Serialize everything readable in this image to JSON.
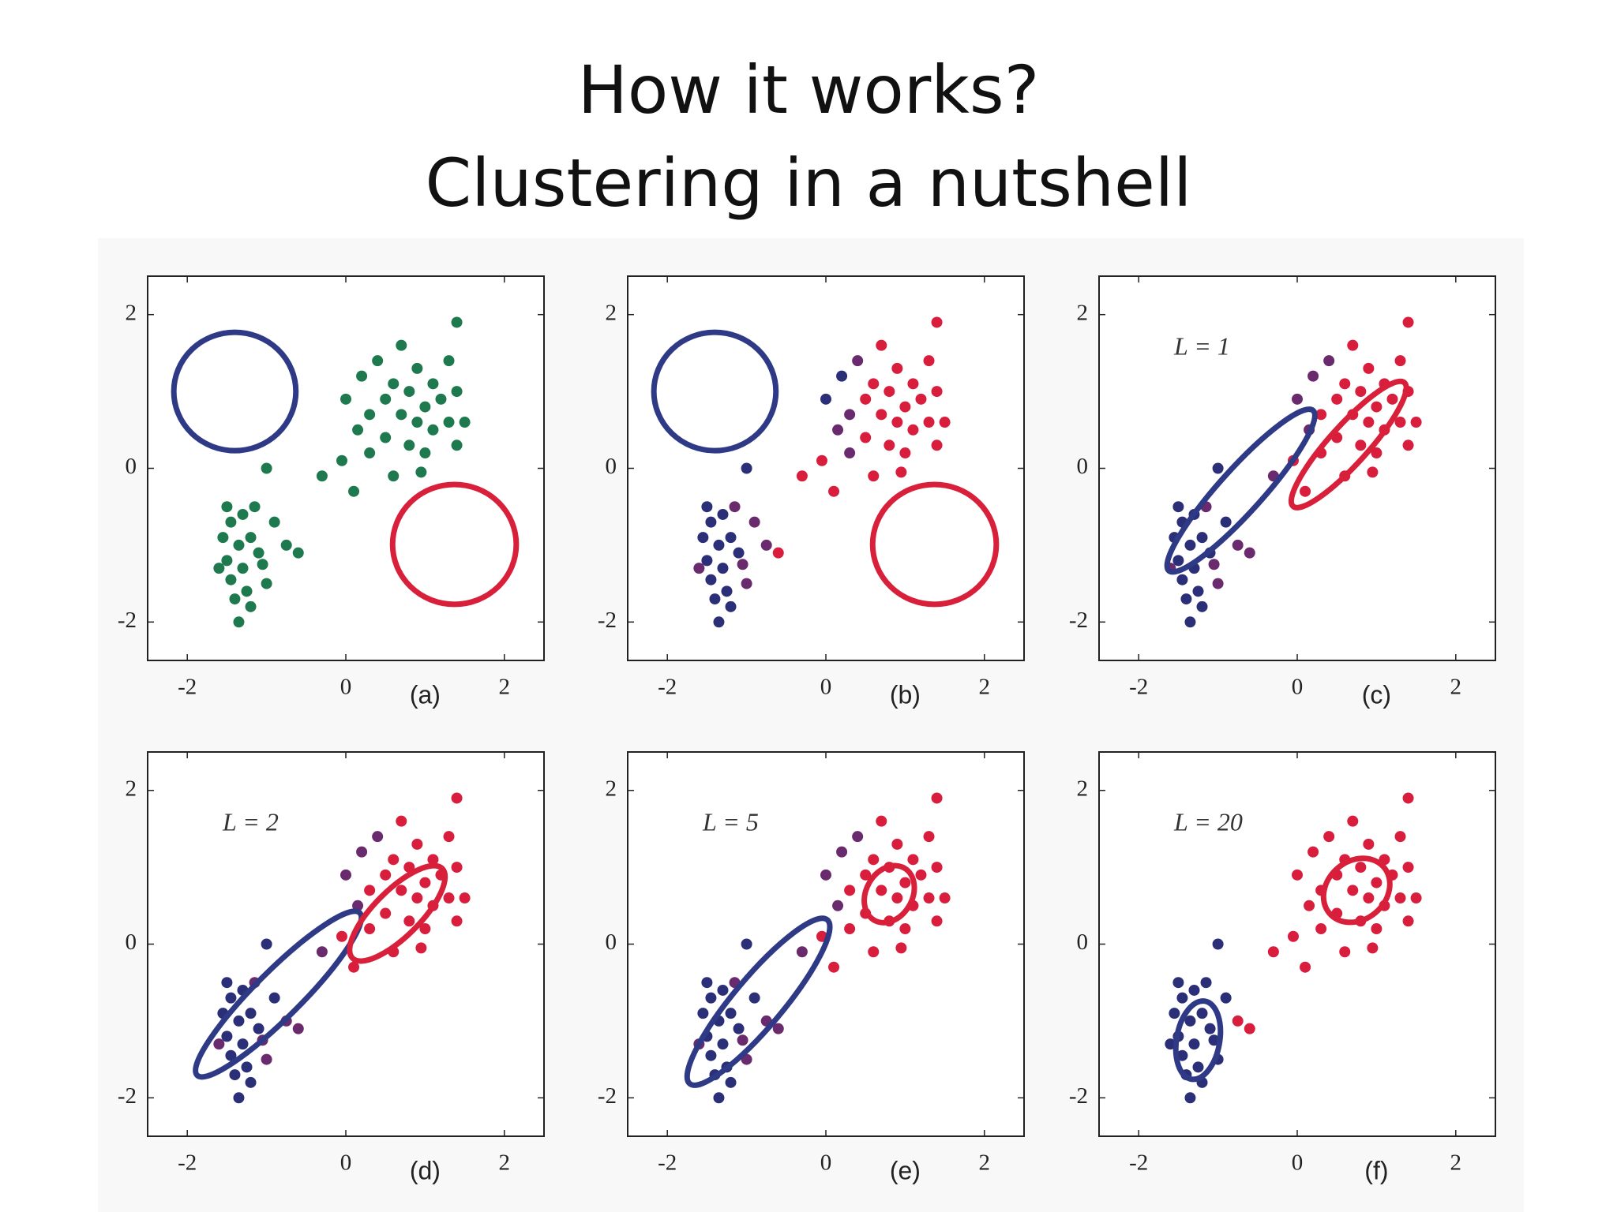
{
  "title": {
    "line1": "How it works?",
    "line2": "Clustering in a nutshell"
  },
  "chart_data": [
    {
      "type": "scatter",
      "label": "(a)",
      "xlim": [
        -2.5,
        2.5
      ],
      "ylim": [
        -2.5,
        2.5
      ],
      "xticks": [
        -2,
        0,
        2
      ],
      "yticks": [
        -2,
        0,
        2
      ],
      "series": [
        {
          "color": "#1e7a4e",
          "x": [
            -1.5,
            -1.45,
            -1.3,
            -1.55,
            -1.35,
            -1.2,
            -1.5,
            -1.3,
            -1.1,
            -1.45,
            -1.25,
            -1.4,
            -1.2,
            -1.35,
            -1.0,
            -1.05,
            -1.6,
            -1.15,
            -0.9,
            -0.75,
            -0.6,
            -0.3,
            -0.05,
            0.1,
            -1.0,
            0.0,
            0.2,
            0.3,
            0.4,
            0.5,
            0.5,
            0.6,
            0.7,
            0.7,
            0.8,
            0.8,
            0.9,
            0.9,
            1.0,
            1.0,
            1.1,
            1.1,
            1.2,
            1.3,
            1.3,
            1.4,
            1.4,
            0.3,
            0.6,
            1.5,
            1.4,
            0.15,
            0.95
          ],
          "values": [
            -0.5,
            -0.7,
            -0.6,
            -0.9,
            -1.0,
            -0.9,
            -1.2,
            -1.3,
            -1.1,
            -1.45,
            -1.6,
            -1.7,
            -1.8,
            -2.0,
            -1.5,
            -1.25,
            -1.3,
            -0.5,
            -0.7,
            -1.0,
            -1.1,
            -0.1,
            0.1,
            -0.3,
            0.0,
            0.9,
            1.2,
            0.7,
            1.4,
            0.9,
            0.4,
            1.1,
            0.7,
            1.6,
            0.3,
            1.0,
            0.6,
            1.3,
            0.8,
            0.2,
            1.1,
            0.5,
            0.9,
            0.6,
            1.4,
            0.3,
            1.0,
            0.2,
            -0.1,
            0.6,
            1.9,
            0.5,
            -0.05
          ]
        }
      ],
      "ellipses": [
        {
          "cx": -1.4,
          "cy": 1.0,
          "rx": 0.77,
          "ry": 0.77,
          "angle": 0,
          "color": "#2f3a86"
        },
        {
          "cx": 1.37,
          "cy": -0.99,
          "rx": 0.78,
          "ry": 0.78,
          "angle": 0,
          "color": "#d8203a"
        }
      ]
    },
    {
      "type": "scatter",
      "label": "(b)",
      "xlim": [
        -2.5,
        2.5
      ],
      "ylim": [
        -2.5,
        2.5
      ],
      "xticks": [
        -2,
        0,
        2
      ],
      "yticks": [
        -2,
        0,
        2
      ],
      "series": [
        {
          "color": "#2a2f78",
          "x": [
            -1.5,
            -1.45,
            -1.3,
            -1.55,
            -1.35,
            -1.2,
            -1.5,
            -1.3,
            -1.1,
            -1.45,
            -1.25,
            -1.4,
            -1.2,
            -1.35,
            -1.0,
            0.0,
            0.2
          ],
          "values": [
            -0.5,
            -0.7,
            -0.6,
            -0.9,
            -1.0,
            -0.9,
            -1.2,
            -1.3,
            -1.1,
            -1.45,
            -1.6,
            -1.7,
            -1.8,
            -2.0,
            0.0,
            0.9,
            1.2
          ]
        },
        {
          "color": "#6a2a6e",
          "x": [
            -1.0,
            -1.05,
            -1.6,
            -1.15,
            -0.9,
            0.15,
            0.3,
            0.4,
            0.3,
            -0.75
          ],
          "values": [
            -1.5,
            -1.25,
            -1.3,
            -0.5,
            -0.7,
            0.5,
            0.7,
            1.4,
            0.2,
            -1.0
          ]
        },
        {
          "color": "#d81e3c",
          "x": [
            -0.6,
            -0.3,
            -0.05,
            0.1,
            0.5,
            0.5,
            0.6,
            0.7,
            0.7,
            0.8,
            0.8,
            0.9,
            0.9,
            1.0,
            1.0,
            1.1,
            1.1,
            1.2,
            1.3,
            1.3,
            1.4,
            1.4,
            0.6,
            1.5,
            1.4,
            0.95
          ],
          "values": [
            -1.1,
            -0.1,
            0.1,
            -0.3,
            0.9,
            0.4,
            1.1,
            0.7,
            1.6,
            0.3,
            1.0,
            0.6,
            1.3,
            0.8,
            0.2,
            1.1,
            0.5,
            0.9,
            0.6,
            1.4,
            0.3,
            1.0,
            -0.1,
            0.6,
            1.9,
            -0.05
          ]
        }
      ],
      "ellipses": [
        {
          "cx": -1.4,
          "cy": 1.0,
          "rx": 0.77,
          "ry": 0.77,
          "angle": 0,
          "color": "#2f3a86"
        },
        {
          "cx": 1.37,
          "cy": -0.99,
          "rx": 0.78,
          "ry": 0.78,
          "angle": 0,
          "color": "#d8203a"
        }
      ]
    },
    {
      "type": "scatter",
      "label": "(c)",
      "annotation": "L = 1",
      "xlim": [
        -2.5,
        2.5
      ],
      "ylim": [
        -2.5,
        2.5
      ],
      "xticks": [
        -2,
        0,
        2
      ],
      "yticks": [
        -2,
        0,
        2
      ],
      "series": [
        {
          "color": "#2a2f78",
          "x": [
            -1.5,
            -1.45,
            -1.3,
            -1.55,
            -1.35,
            -1.2,
            -1.5,
            -1.3,
            -1.1,
            -1.45,
            -1.25,
            -1.4,
            -1.2,
            -1.35,
            -1.0,
            -0.9
          ],
          "values": [
            -0.5,
            -0.7,
            -0.6,
            -0.9,
            -1.0,
            -0.9,
            -1.2,
            -1.3,
            -1.1,
            -1.45,
            -1.6,
            -1.7,
            -1.8,
            -2.0,
            0.0,
            -0.7
          ]
        },
        {
          "color": "#6a2a6e",
          "x": [
            -1.0,
            -1.05,
            -1.6,
            -1.15,
            -0.75,
            -0.6,
            -0.3,
            0.0,
            0.2,
            0.15,
            0.4
          ],
          "values": [
            -1.5,
            -1.25,
            -1.3,
            -0.5,
            -1.0,
            -1.1,
            -0.1,
            0.9,
            1.2,
            0.5,
            1.4
          ]
        },
        {
          "color": "#d81e3c",
          "x": [
            0.3,
            0.5,
            0.5,
            0.6,
            0.7,
            0.7,
            0.8,
            0.8,
            0.9,
            0.9,
            1.0,
            1.0,
            1.1,
            1.1,
            1.2,
            1.3,
            1.3,
            1.4,
            1.4,
            0.3,
            0.6,
            1.5,
            1.4,
            0.95,
            -0.05,
            0.1
          ],
          "values": [
            0.7,
            0.9,
            0.4,
            1.1,
            0.7,
            1.6,
            0.3,
            1.0,
            0.6,
            1.3,
            0.8,
            0.2,
            1.1,
            0.5,
            0.9,
            0.6,
            1.4,
            0.3,
            1.0,
            0.2,
            -0.1,
            0.6,
            1.9,
            -0.05,
            0.1,
            -0.3
          ]
        }
      ],
      "ellipses": [
        {
          "cx": -0.71,
          "cy": -0.29,
          "rx": 1.36,
          "ry": 0.28,
          "angle": 48,
          "color": "#2f3a86"
        },
        {
          "cx": 0.65,
          "cy": 0.31,
          "rx": 1.05,
          "ry": 0.25,
          "angle": 48,
          "color": "#d8203a"
        }
      ]
    },
    {
      "type": "scatter",
      "label": "(d)",
      "annotation": "L = 2",
      "xlim": [
        -2.5,
        2.5
      ],
      "ylim": [
        -2.5,
        2.5
      ],
      "xticks": [
        -2,
        0,
        2
      ],
      "yticks": [
        -2,
        0,
        2
      ],
      "series": [
        {
          "color": "#2a2f78",
          "x": [
            -1.5,
            -1.45,
            -1.3,
            -1.55,
            -1.35,
            -1.2,
            -1.5,
            -1.3,
            -1.1,
            -1.45,
            -1.25,
            -1.4,
            -1.2,
            -1.35,
            -1.0,
            -0.9
          ],
          "values": [
            -0.5,
            -0.7,
            -0.6,
            -0.9,
            -1.0,
            -0.9,
            -1.2,
            -1.3,
            -1.1,
            -1.45,
            -1.6,
            -1.7,
            -1.8,
            -2.0,
            0.0,
            -0.7
          ]
        },
        {
          "color": "#6a2a6e",
          "x": [
            -1.0,
            -1.05,
            -1.6,
            -1.15,
            -0.75,
            -0.6,
            -0.3,
            0.0,
            0.2,
            0.15,
            0.4
          ],
          "values": [
            -1.5,
            -1.25,
            -1.3,
            -0.5,
            -1.0,
            -1.1,
            -0.1,
            0.9,
            1.2,
            0.5,
            1.4
          ]
        },
        {
          "color": "#d81e3c",
          "x": [
            0.3,
            0.5,
            0.5,
            0.6,
            0.7,
            0.7,
            0.8,
            0.8,
            0.9,
            0.9,
            1.0,
            1.0,
            1.1,
            1.1,
            1.2,
            1.3,
            1.3,
            1.4,
            1.4,
            0.3,
            0.6,
            1.5,
            1.4,
            0.95,
            -0.05,
            0.1
          ],
          "values": [
            0.7,
            0.9,
            0.4,
            1.1,
            0.7,
            1.6,
            0.3,
            1.0,
            0.6,
            1.3,
            0.8,
            0.2,
            1.1,
            0.5,
            0.9,
            0.6,
            1.4,
            0.3,
            1.0,
            0.2,
            -0.1,
            0.6,
            1.9,
            -0.05,
            0.1,
            -0.3
          ]
        }
      ],
      "ellipses": [
        {
          "cx": -0.85,
          "cy": -0.65,
          "rx": 1.45,
          "ry": 0.3,
          "angle": 45,
          "color": "#2f3a86"
        },
        {
          "cx": 0.65,
          "cy": 0.4,
          "rx": 0.8,
          "ry": 0.3,
          "angle": 45,
          "color": "#d8203a"
        }
      ]
    },
    {
      "type": "scatter",
      "label": "(e)",
      "annotation": "L = 5",
      "xlim": [
        -2.5,
        2.5
      ],
      "ylim": [
        -2.5,
        2.5
      ],
      "xticks": [
        -2,
        0,
        2
      ],
      "yticks": [
        -2,
        0,
        2
      ],
      "series": [
        {
          "color": "#2a2f78",
          "x": [
            -1.5,
            -1.45,
            -1.3,
            -1.55,
            -1.35,
            -1.2,
            -1.5,
            -1.3,
            -1.1,
            -1.45,
            -1.25,
            -1.4,
            -1.2,
            -1.35,
            -1.0,
            -0.9
          ],
          "values": [
            -0.5,
            -0.7,
            -0.6,
            -0.9,
            -1.0,
            -0.9,
            -1.2,
            -1.3,
            -1.1,
            -1.45,
            -1.6,
            -1.7,
            -1.8,
            -2.0,
            0.0,
            -0.7
          ]
        },
        {
          "color": "#6a2a6e",
          "x": [
            -1.0,
            -1.05,
            -1.6,
            -1.15,
            -0.75,
            -0.6,
            -0.3,
            0.0,
            0.2,
            0.15,
            0.4
          ],
          "values": [
            -1.5,
            -1.25,
            -1.3,
            -0.5,
            -1.0,
            -1.1,
            -0.1,
            0.9,
            1.2,
            0.5,
            1.4
          ]
        },
        {
          "color": "#d81e3c",
          "x": [
            0.3,
            0.5,
            0.5,
            0.6,
            0.7,
            0.7,
            0.8,
            0.8,
            0.9,
            0.9,
            1.0,
            1.0,
            1.1,
            1.1,
            1.2,
            1.3,
            1.3,
            1.4,
            1.4,
            0.3,
            0.6,
            1.5,
            1.4,
            0.95,
            -0.05,
            0.1
          ],
          "values": [
            0.7,
            0.9,
            0.4,
            1.1,
            0.7,
            1.6,
            0.3,
            1.0,
            0.6,
            1.3,
            0.8,
            0.2,
            1.1,
            0.5,
            0.9,
            0.6,
            1.4,
            0.3,
            1.0,
            0.2,
            -0.1,
            0.6,
            1.9,
            -0.05,
            0.1,
            -0.3
          ]
        }
      ],
      "ellipses": [
        {
          "cx": -0.85,
          "cy": -0.75,
          "rx": 1.35,
          "ry": 0.32,
          "angle": 50,
          "color": "#2f3a86"
        },
        {
          "cx": 0.8,
          "cy": 0.65,
          "rx": 0.38,
          "ry": 0.3,
          "angle": 60,
          "color": "#d8203a"
        }
      ]
    },
    {
      "type": "scatter",
      "label": "(f)",
      "annotation": "L = 20",
      "xlim": [
        -2.5,
        2.5
      ],
      "ylim": [
        -2.5,
        2.5
      ],
      "xticks": [
        -2,
        0,
        2
      ],
      "yticks": [
        -2,
        0,
        2
      ],
      "series": [
        {
          "color": "#2a2f78",
          "x": [
            -1.5,
            -1.45,
            -1.3,
            -1.55,
            -1.35,
            -1.2,
            -1.5,
            -1.3,
            -1.1,
            -1.45,
            -1.25,
            -1.4,
            -1.2,
            -1.35,
            -1.0,
            -1.05,
            -1.6,
            -1.15,
            -1.0,
            -0.9
          ],
          "values": [
            -0.5,
            -0.7,
            -0.6,
            -0.9,
            -1.0,
            -0.9,
            -1.2,
            -1.3,
            -1.1,
            -1.45,
            -1.6,
            -1.7,
            -1.8,
            -2.0,
            -1.5,
            -1.25,
            -1.3,
            -0.5,
            0.0,
            -0.7
          ]
        },
        {
          "color": "#d81e3c",
          "x": [
            -0.75,
            -0.6,
            -0.3,
            -0.05,
            0.1,
            0.0,
            0.2,
            0.3,
            0.4,
            0.5,
            0.5,
            0.6,
            0.7,
            0.7,
            0.8,
            0.8,
            0.9,
            0.9,
            1.0,
            1.0,
            1.1,
            1.1,
            1.2,
            1.3,
            1.3,
            1.4,
            1.4,
            0.3,
            0.6,
            1.5,
            1.4,
            0.15,
            0.95
          ],
          "values": [
            -1.0,
            -1.1,
            -0.1,
            0.1,
            -0.3,
            0.9,
            1.2,
            0.7,
            1.4,
            0.9,
            0.4,
            1.1,
            0.7,
            1.6,
            0.3,
            1.0,
            0.6,
            1.3,
            0.8,
            0.2,
            1.1,
            0.5,
            0.9,
            0.6,
            1.4,
            0.3,
            1.0,
            0.2,
            -0.1,
            0.6,
            1.9,
            0.5,
            -0.05
          ]
        }
      ],
      "ellipses": [
        {
          "cx": -1.25,
          "cy": -1.25,
          "rx": 0.5,
          "ry": 0.28,
          "angle": 80,
          "color": "#2f3a86"
        },
        {
          "cx": 0.75,
          "cy": 0.7,
          "rx": 0.45,
          "ry": 0.38,
          "angle": 40,
          "color": "#d8203a"
        }
      ]
    }
  ]
}
